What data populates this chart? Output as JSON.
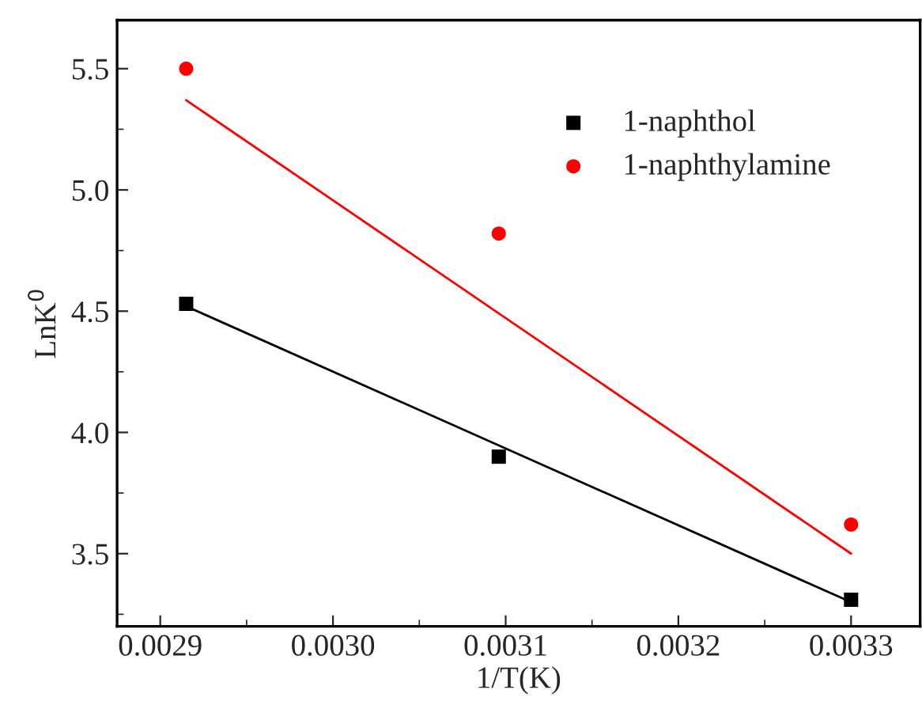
{
  "chart_data": {
    "type": "scatter",
    "xlabel": "1/T(K)",
    "ylabel": "LnK$^{0}$",
    "xlim": [
      0.002875,
      0.00334
    ],
    "ylim": [
      3.2,
      5.7
    ],
    "xticks": [
      {
        "value": 0.0029,
        "label": "0.0029"
      },
      {
        "value": 0.003,
        "label": "0.0030"
      },
      {
        "value": 0.0031,
        "label": "0.0031"
      },
      {
        "value": 0.0032,
        "label": "0.0032"
      },
      {
        "value": 0.0033,
        "label": "0.0033"
      }
    ],
    "yticks": [
      {
        "value": 3.5,
        "label": "3.5"
      },
      {
        "value": 4.0,
        "label": "4.0"
      },
      {
        "value": 4.5,
        "label": "4.5"
      },
      {
        "value": 5.0,
        "label": "5.0"
      },
      {
        "value": 5.5,
        "label": "5.5"
      }
    ],
    "legend": "top right",
    "grid": false,
    "series": [
      {
        "name": "1-naphthol",
        "color": "#000000",
        "marker": "square",
        "x": [
          0.002915,
          0.003096,
          0.0033
        ],
        "values": [
          4.53,
          3.9,
          3.31
        ]
      },
      {
        "name": "1-naphthylamine",
        "color": "#ff0000",
        "marker": "circle",
        "x": [
          0.002915,
          0.003096,
          0.0033
        ],
        "values": [
          5.5,
          4.82,
          3.62
        ]
      },
      {
        "type": "line",
        "color": "#000000",
        "x": [
          0.002915,
          0.0033
        ],
        "values": [
          4.52,
          3.3
        ]
      },
      {
        "type": "line",
        "color": "#ff0000",
        "x": [
          0.002915,
          0.0033
        ],
        "values": [
          5.37,
          3.5
        ]
      }
    ]
  }
}
